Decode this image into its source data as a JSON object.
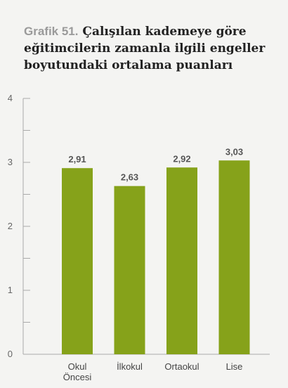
{
  "title": {
    "prefix": "Grafik 51.",
    "text": "Çalışılan kademeye göre eğitimcilerin zamanla ilgili engeller boyutundaki ortalama puanları"
  },
  "colors": {
    "bar": "#86a21a",
    "axis": "#aaaaaa",
    "background": "#f4f4f2"
  },
  "chart_data": {
    "type": "bar",
    "title": "Grafik 51. Çalışılan kademeye göre eğitimcilerin zamanla ilgili engeller boyutundaki ortalama puanları",
    "categories": [
      [
        "Okul",
        "Öncesi"
      ],
      [
        "İlkokul"
      ],
      [
        "Ortaokul"
      ],
      [
        "Lise"
      ]
    ],
    "values": [
      2.91,
      2.63,
      2.92,
      3.03
    ],
    "data_labels": [
      "2,91",
      "2,63",
      "2,92",
      "3,03"
    ],
    "yticks": [
      "0",
      "1",
      "2",
      "3",
      "4"
    ],
    "ylim": [
      0,
      4
    ],
    "xlabel": "",
    "ylabel": "",
    "grid": false,
    "legend": "none"
  }
}
